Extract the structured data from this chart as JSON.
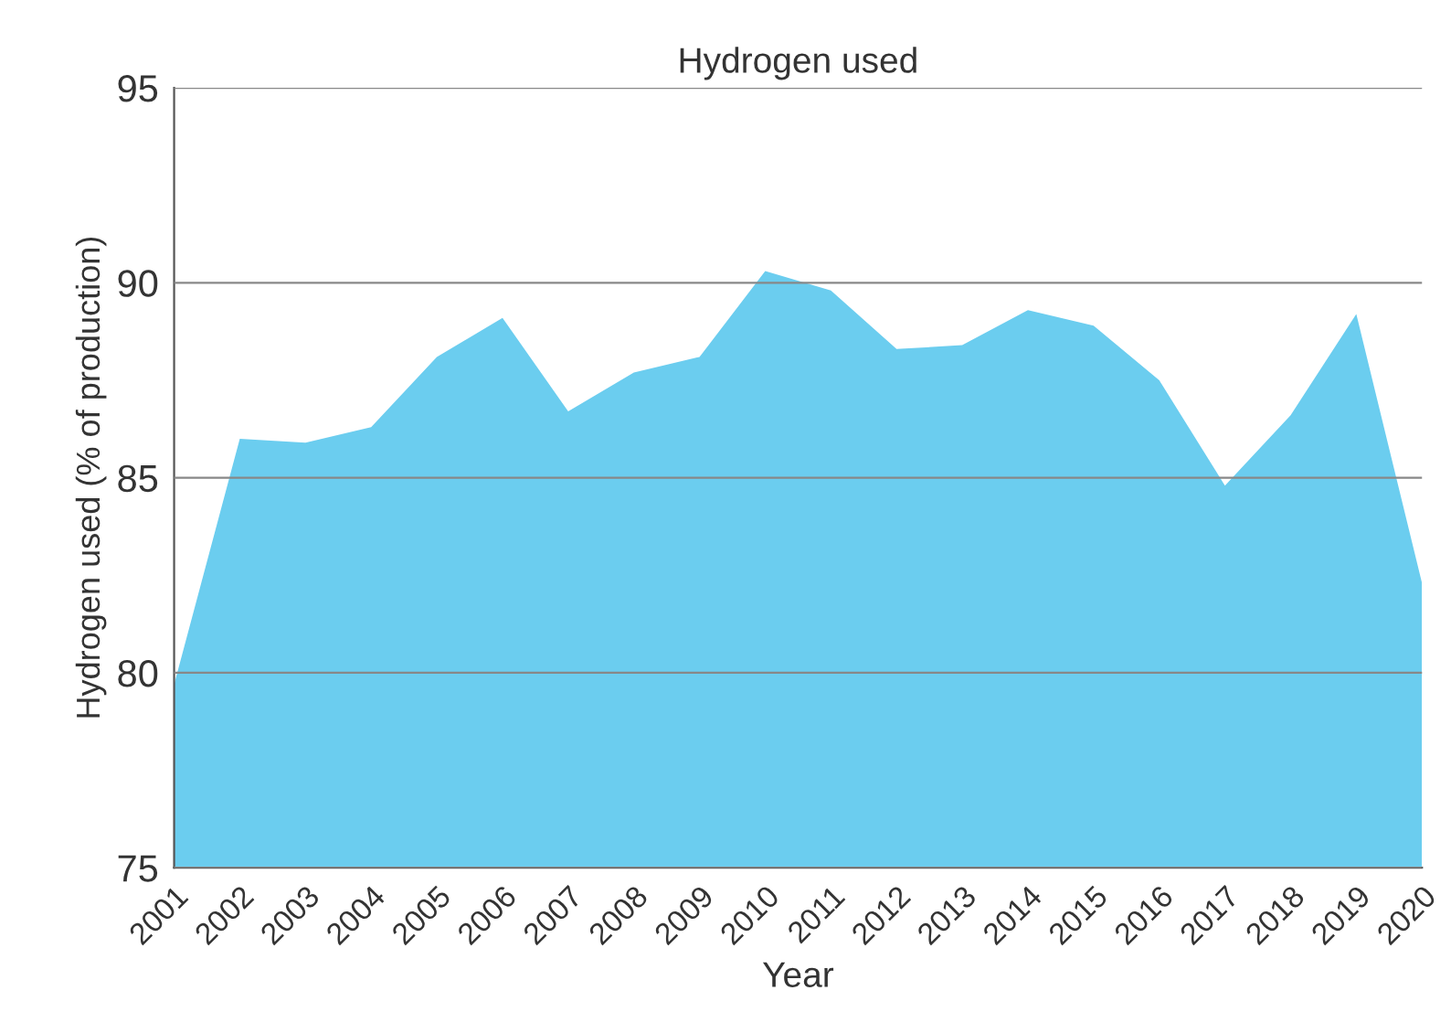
{
  "chart_data": {
    "type": "area",
    "title": "Hydrogen used",
    "xlabel": "Year",
    "ylabel": "Hydrogen used (% of production)",
    "x": [
      2001,
      2002,
      2003,
      2004,
      2005,
      2006,
      2007,
      2008,
      2009,
      2010,
      2011,
      2012,
      2013,
      2014,
      2015,
      2016,
      2017,
      2018,
      2019,
      2020
    ],
    "series": [
      {
        "color": "#6bcdef",
        "values": [
          79.7,
          86.0,
          85.9,
          86.3,
          88.1,
          89.1,
          86.7,
          87.7,
          88.1,
          90.3,
          89.8,
          88.3,
          88.4,
          89.3,
          88.9,
          87.5,
          84.8,
          86.6,
          89.2,
          82.3
        ]
      }
    ],
    "xlim": [
      2001,
      2020
    ],
    "xticks": [
      2001,
      2002,
      2003,
      2004,
      2005,
      2006,
      2007,
      2008,
      2009,
      2010,
      2011,
      2012,
      2013,
      2014,
      2015,
      2016,
      2017,
      2018,
      2019,
      2020
    ],
    "ylim": [
      75,
      95
    ],
    "yticks": [
      75,
      80,
      85,
      90,
      95
    ],
    "grid": "y"
  }
}
